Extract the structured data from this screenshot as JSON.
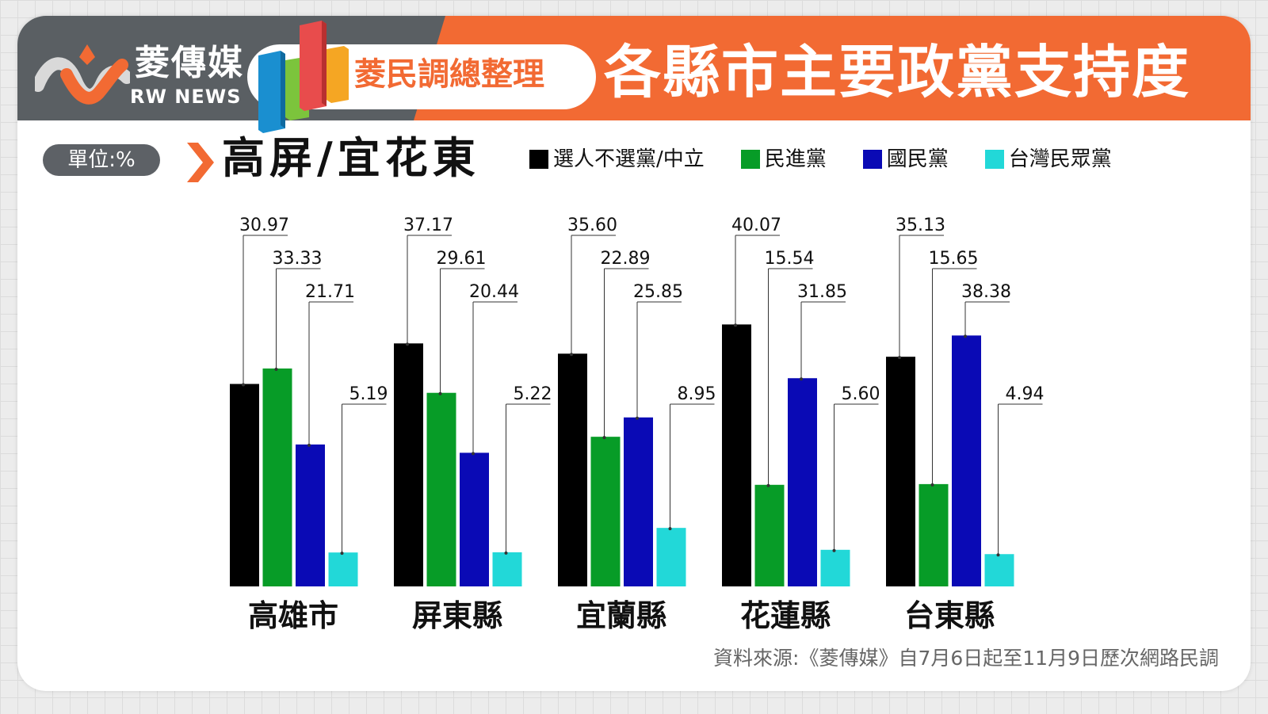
{
  "header": {
    "logo_cn": "菱傳媒",
    "logo_en": "RW NEWS",
    "pill_text": "菱民調總整理",
    "title": "各縣市主要政黨支持度"
  },
  "unit_label": "單位:%",
  "region_title": "高屏/宜花東",
  "source": "資料來源:《菱傳媒》自7月6日起至11月9日歷次網路民調",
  "colors": {
    "header_dark": "#5a5f63",
    "header_orange": "#f26a33"
  },
  "chart_data": {
    "type": "bar",
    "categories": [
      "高雄市",
      "屏東縣",
      "宜蘭縣",
      "花蓮縣",
      "台東縣"
    ],
    "series": [
      {
        "name": "選人不選黨/中立",
        "color": "#000000",
        "values": [
          30.97,
          37.17,
          35.6,
          40.07,
          35.13
        ],
        "labels": [
          "30.97",
          "37.17",
          "35.60",
          "40.07",
          "35.13"
        ]
      },
      {
        "name": "民進黨",
        "color": "#079c27",
        "values": [
          33.33,
          29.61,
          22.89,
          15.54,
          15.65
        ],
        "labels": [
          "33.33",
          "29.61",
          "22.89",
          "15.54",
          "15.65"
        ]
      },
      {
        "name": "國民黨",
        "color": "#0a0ab5",
        "values": [
          21.71,
          20.44,
          25.85,
          31.85,
          38.38
        ],
        "labels": [
          "21.71",
          "20.44",
          "25.85",
          "31.85",
          "38.38"
        ]
      },
      {
        "name": "台灣民眾黨",
        "color": "#22d8d8",
        "values": [
          5.19,
          5.22,
          8.95,
          5.6,
          4.94
        ],
        "labels": [
          "5.19",
          "5.22",
          "8.95",
          "5.60",
          "4.94"
        ]
      }
    ]
  }
}
